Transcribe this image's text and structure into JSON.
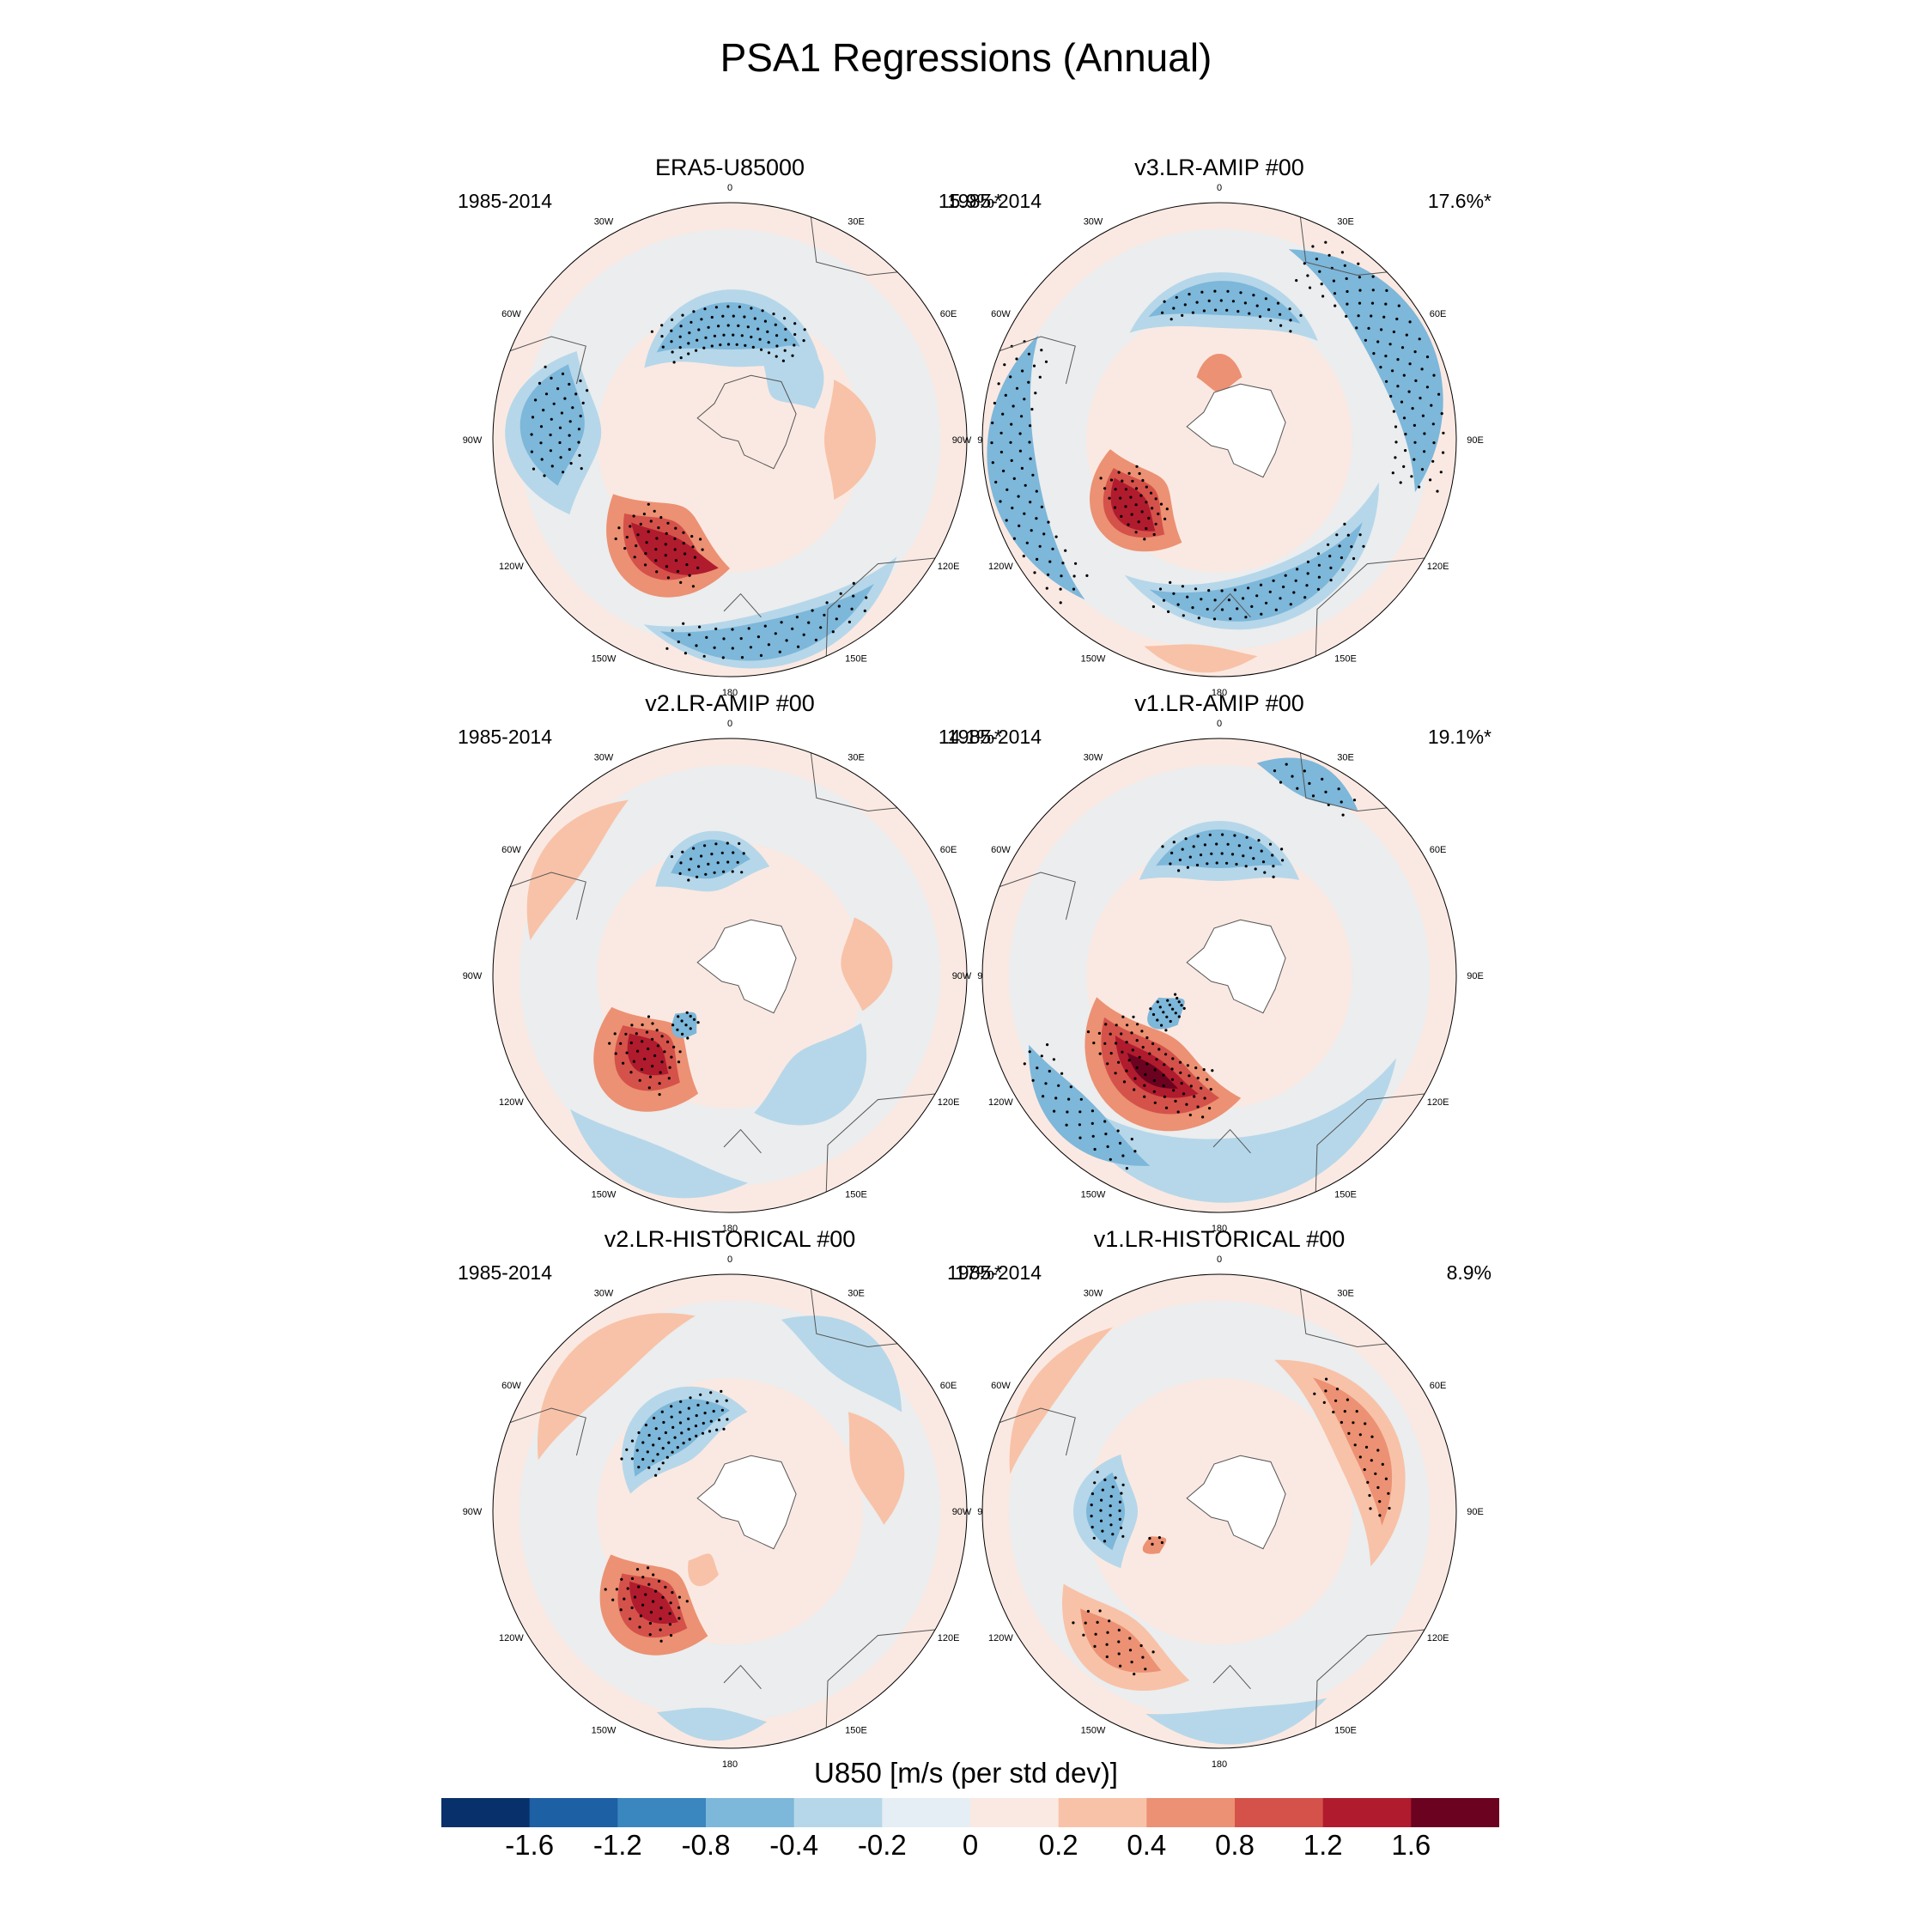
{
  "title": "PSA1 Regressions (Annual)",
  "lon_labels": [
    "0",
    "30E",
    "60E",
    "90E",
    "120E",
    "150E",
    "180",
    "150W",
    "120W",
    "90W",
    "60W",
    "30W"
  ],
  "panels": [
    {
      "title": "ERA5-U85000",
      "years": "1985-2014",
      "pct": "15.9%*",
      "ice": false
    },
    {
      "title": "v3.LR-AMIP  #00",
      "years": "1985-2014",
      "pct": "17.6%*",
      "ice": true
    },
    {
      "title": "v2.LR-AMIP  #00",
      "years": "1985-2014",
      "pct": "14.1%*",
      "ice": true
    },
    {
      "title": "v1.LR-AMIP  #00",
      "years": "1985-2014",
      "pct": "19.1%*",
      "ice": true
    },
    {
      "title": "v2.LR-HISTORICAL  #00",
      "years": "1985-2014",
      "pct": "17%*",
      "ice": true
    },
    {
      "title": "v1.LR-HISTORICAL  #00",
      "years": "1985-2014",
      "pct": "8.9%",
      "ice": true
    }
  ],
  "colorbar": {
    "title": "U850 [m/s (per std dev)]",
    "labels": [
      "-1.6",
      "-1.2",
      "-0.8",
      "-0.4",
      "-0.2",
      "0",
      "0.2",
      "0.4",
      "0.8",
      "1.2",
      "1.6"
    ],
    "colors": [
      "#08306b",
      "#1e60a4",
      "#3a87bf",
      "#7db7da",
      "#b6d7e9",
      "#e4eef4",
      "#fae9e2",
      "#f8c2a8",
      "#ec9173",
      "#d4524a",
      "#b01b2e",
      "#6b0220"
    ]
  }
}
